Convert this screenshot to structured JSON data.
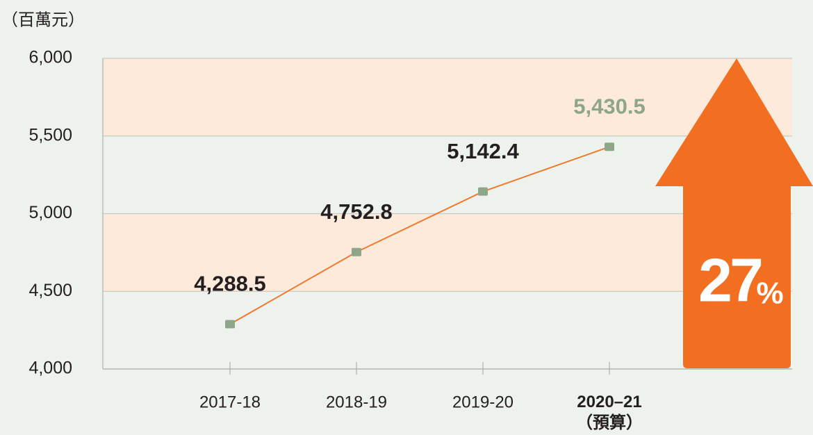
{
  "chart_data": {
    "type": "line",
    "unit_label": "（百萬元）",
    "categories": [
      "2017-18",
      "2018-19",
      "2019-20",
      "2020–21\n（預算）"
    ],
    "series": [
      {
        "name": null,
        "color": "#ee7a30",
        "marker_color": "#8ea58a",
        "values": [
          4288.5,
          4752.8,
          5142.4,
          5430.5
        ],
        "value_labels": [
          "4,288.5",
          "4,752.8",
          "5,142.4",
          "5,430.5"
        ],
        "label_colors": [
          "#231f20",
          "#231f20",
          "#231f20",
          "#8ea58a"
        ]
      }
    ],
    "ylim": [
      4000,
      6000
    ],
    "yticks": [
      {
        "value": 4000,
        "label": "4,000"
      },
      {
        "value": 4500,
        "label": "4,500"
      },
      {
        "value": 5000,
        "label": "5,000"
      },
      {
        "value": 5500,
        "label": "5,500"
      },
      {
        "value": 6000,
        "label": "6,000"
      }
    ],
    "grid": true,
    "band_color": "#fdeadb",
    "increase_label": "27",
    "increase_unit": "%",
    "arrow_color": "#f26f21"
  }
}
